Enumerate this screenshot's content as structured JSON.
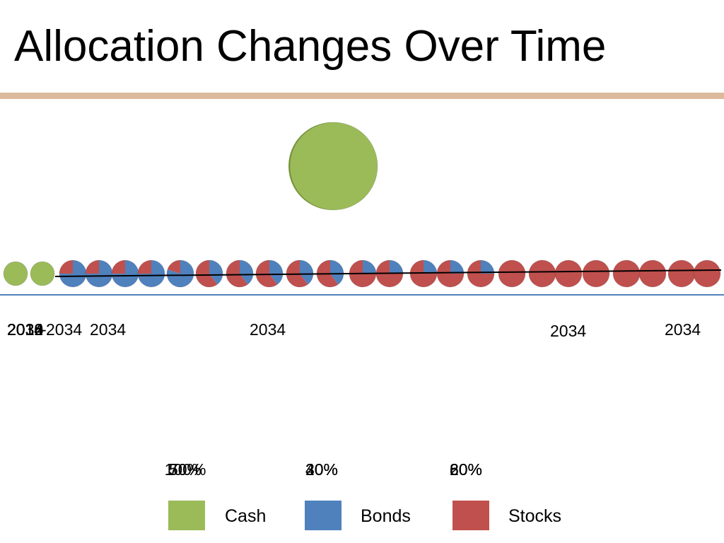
{
  "slide": {
    "title": "Allocation Changes Over Time"
  },
  "colors": {
    "cash": "#9bbb59",
    "bonds": "#4f81bd",
    "stocks": "#c0504d",
    "rule": "#dcb99d",
    "axis": "#4f81bd",
    "trend": "#000000"
  },
  "chart_data": {
    "type": "scatter",
    "title": "",
    "xlabel": "",
    "ylabel": "",
    "marker": "pie",
    "x_tick_labels": [
      "2034",
      "2010",
      "2012",
      "2014",
      "2016",
      "2018",
      "2034",
      "2034",
      "2034",
      "2034",
      "2034",
      "2034",
      "2034",
      "2034"
    ],
    "series": [
      {
        "name": "Cash",
        "color": "#9bbb59"
      },
      {
        "name": "Bonds",
        "color": "#4f81bd"
      },
      {
        "name": "Stocks",
        "color": "#c0504d"
      }
    ],
    "points": [
      {
        "cash": 100,
        "bonds": 0,
        "stocks": 0
      },
      {
        "cash": 100,
        "bonds": 0,
        "stocks": 0
      },
      {
        "cash": 0,
        "bonds": 75,
        "stocks": 25
      },
      {
        "cash": 0,
        "bonds": 75,
        "stocks": 25
      },
      {
        "cash": 0,
        "bonds": 75,
        "stocks": 25
      },
      {
        "cash": 0,
        "bonds": 75,
        "stocks": 25
      },
      {
        "cash": 0,
        "bonds": 80,
        "stocks": 20
      },
      {
        "cash": 0,
        "bonds": 40,
        "stocks": 60
      },
      {
        "cash": 0,
        "bonds": 40,
        "stocks": 60
      },
      {
        "cash": 0,
        "bonds": 40,
        "stocks": 60
      },
      {
        "cash": 0,
        "bonds": 40,
        "stocks": 60
      },
      {
        "cash": 0,
        "bonds": 40,
        "stocks": 60
      },
      {
        "cash": 0,
        "bonds": 25,
        "stocks": 75
      },
      {
        "cash": 0,
        "bonds": 25,
        "stocks": 75
      },
      {
        "cash": 0,
        "bonds": 25,
        "stocks": 75
      },
      {
        "cash": 0,
        "bonds": 25,
        "stocks": 75
      },
      {
        "cash": 0,
        "bonds": 25,
        "stocks": 75
      },
      {
        "cash": 0,
        "bonds": 0,
        "stocks": 100
      },
      {
        "cash": 0,
        "bonds": 0,
        "stocks": 100
      },
      {
        "cash": 0,
        "bonds": 0,
        "stocks": 100
      },
      {
        "cash": 0,
        "bonds": 0,
        "stocks": 100
      },
      {
        "cash": 0,
        "bonds": 0,
        "stocks": 100
      },
      {
        "cash": 0,
        "bonds": 0,
        "stocks": 100
      },
      {
        "cash": 0,
        "bonds": 0,
        "stocks": 100
      },
      {
        "cash": 0,
        "bonds": 0,
        "stocks": 100
      }
    ],
    "featured_point": {
      "cash": 100,
      "bonds": 0,
      "stocks": 0
    },
    "trend_line": true,
    "legend": {
      "placement": "bottom",
      "entries": [
        "Cash",
        "Bonds",
        "Stocks"
      ]
    },
    "percent_labels": {
      "cash": [
        "50%",
        "70%",
        "100%"
      ],
      "bonds": [
        "40%",
        "30%",
        "20%"
      ],
      "stocks": [
        "60%",
        "80%",
        "20%"
      ]
    }
  }
}
